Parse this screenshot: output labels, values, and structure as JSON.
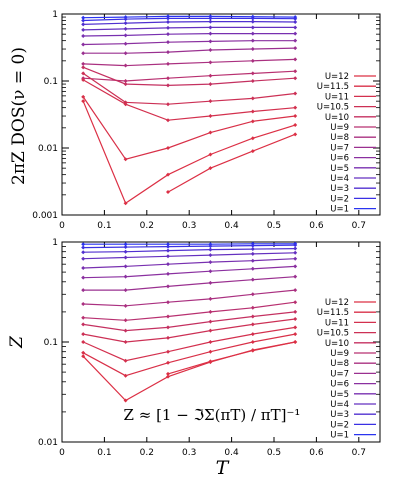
{
  "chart_data": [
    {
      "type": "line",
      "title": "",
      "ylabel": "2πZ DOS(ν = 0)",
      "xlabel": "",
      "yscale": "log",
      "xlim": [
        0,
        0.75
      ],
      "ylim": [
        0.001,
        1
      ],
      "xticks": [
        "0",
        "0.1",
        "0.2",
        "0.3",
        "0.4",
        "0.5",
        "0.6",
        "0.7"
      ],
      "yticks": [
        "0.001",
        "0.01",
        "0.1",
        "1"
      ],
      "legend_position": "right",
      "series": [
        {
          "name": "U=1",
          "color": "#2a34f0",
          "x": [
            0.05,
            0.15,
            0.25,
            0.35,
            0.45,
            0.55
          ],
          "y": [
            0.88,
            0.9,
            0.92,
            0.92,
            0.91,
            0.9
          ]
        },
        {
          "name": "U=2",
          "color": "#3a30e4",
          "x": [
            0.05,
            0.15,
            0.25,
            0.35,
            0.45,
            0.55
          ],
          "y": [
            0.8,
            0.84,
            0.86,
            0.86,
            0.86,
            0.85
          ]
        },
        {
          "name": "U=3",
          "color": "#5030d0",
          "x": [
            0.05,
            0.15,
            0.25,
            0.35,
            0.45,
            0.55
          ],
          "y": [
            0.7,
            0.73,
            0.76,
            0.77,
            0.77,
            0.76
          ]
        },
        {
          "name": "U=4",
          "color": "#6430c0",
          "x": [
            0.05,
            0.15,
            0.25,
            0.35,
            0.45,
            0.55
          ],
          "y": [
            0.58,
            0.6,
            0.62,
            0.63,
            0.63,
            0.63
          ]
        },
        {
          "name": "U=5",
          "color": "#7830b0",
          "x": [
            0.05,
            0.15,
            0.25,
            0.35,
            0.45,
            0.55
          ],
          "y": [
            0.47,
            0.48,
            0.5,
            0.51,
            0.51,
            0.51
          ]
        },
        {
          "name": "U=6",
          "color": "#8a30a0",
          "x": [
            0.05,
            0.15,
            0.25,
            0.35,
            0.45,
            0.55
          ],
          "y": [
            0.35,
            0.36,
            0.38,
            0.39,
            0.4,
            0.4
          ]
        },
        {
          "name": "U=7",
          "color": "#9a3090",
          "x": [
            0.05,
            0.15,
            0.25,
            0.35,
            0.45,
            0.55
          ],
          "y": [
            0.26,
            0.26,
            0.27,
            0.29,
            0.3,
            0.31
          ]
        },
        {
          "name": "U=8",
          "color": "#aa3080",
          "x": [
            0.05,
            0.15,
            0.25,
            0.35,
            0.45,
            0.55
          ],
          "y": [
            0.18,
            0.17,
            0.18,
            0.19,
            0.2,
            0.21
          ]
        },
        {
          "name": "U=9",
          "color": "#b83070",
          "x": [
            0.05,
            0.15,
            0.25,
            0.35,
            0.45,
            0.55
          ],
          "y": [
            0.11,
            0.1,
            0.11,
            0.12,
            0.13,
            0.14
          ]
        },
        {
          "name": "U=10",
          "color": "#c43060",
          "x": [
            0.05,
            0.15,
            0.25,
            0.35,
            0.45,
            0.55
          ],
          "y": [
            0.16,
            0.09,
            0.086,
            0.09,
            0.1,
            0.11
          ]
        },
        {
          "name": "U=10.5",
          "color": "#cc3055",
          "x": [
            0.05,
            0.15,
            0.25,
            0.35,
            0.45,
            0.55
          ],
          "y": [
            0.13,
            0.048,
            0.045,
            0.05,
            0.055,
            0.065
          ]
        },
        {
          "name": "U=11",
          "color": "#d3304e",
          "x": [
            0.05,
            0.15,
            0.25,
            0.35,
            0.45,
            0.55
          ],
          "y": [
            0.104,
            0.045,
            0.026,
            0.03,
            0.035,
            0.04
          ]
        },
        {
          "name": "U=11.5",
          "color": "#d83048",
          "x": [
            0.05,
            0.15,
            0.25,
            0.35,
            0.45,
            0.55
          ],
          "y": [
            0.058,
            0.0068,
            0.01,
            0.017,
            0.025,
            0.03
          ]
        },
        {
          "name": "U=12",
          "color": "#dc3045",
          "x": [
            0.05,
            0.15,
            0.25,
            0.35,
            0.45,
            0.55
          ],
          "y": [
            0.05,
            0.0015,
            0.004,
            0.008,
            0.014,
            0.022
          ]
        },
        {
          "name": "",
          "color": "#dc3045",
          "x": [
            0.25,
            0.35,
            0.45,
            0.55
          ],
          "y": [
            0.0022,
            0.005,
            0.009,
            0.016
          ]
        }
      ]
    },
    {
      "type": "line",
      "title": "",
      "ylabel": "Z",
      "xlabel": "T",
      "yscale": "log",
      "xlim": [
        0,
        0.75
      ],
      "ylim": [
        0.01,
        1
      ],
      "xticks": [
        "0",
        "0.1",
        "0.2",
        "0.3",
        "0.4",
        "0.5",
        "0.6",
        "0.7"
      ],
      "yticks": [
        "0.01",
        "0.1",
        "1"
      ],
      "legend_position": "right",
      "annotation": "Z ≈ [1 − ℑΣ(πT) / πT]⁻¹",
      "series": [
        {
          "name": "U=1",
          "color": "#2a34f0",
          "x": [
            0.05,
            0.15,
            0.25,
            0.35,
            0.45,
            0.55
          ],
          "y": [
            0.95,
            0.95,
            0.95,
            0.95,
            0.96,
            0.96
          ]
        },
        {
          "name": "U=2",
          "color": "#3a30e4",
          "x": [
            0.05,
            0.15,
            0.25,
            0.35,
            0.45,
            0.55
          ],
          "y": [
            0.88,
            0.89,
            0.9,
            0.91,
            0.92,
            0.93
          ]
        },
        {
          "name": "U=3",
          "color": "#5030d0",
          "x": [
            0.05,
            0.15,
            0.25,
            0.35,
            0.45,
            0.55
          ],
          "y": [
            0.79,
            0.8,
            0.82,
            0.84,
            0.85,
            0.86
          ]
        },
        {
          "name": "U=4",
          "color": "#6430c0",
          "x": [
            0.05,
            0.15,
            0.25,
            0.35,
            0.45,
            0.55
          ],
          "y": [
            0.68,
            0.7,
            0.72,
            0.74,
            0.76,
            0.78
          ]
        },
        {
          "name": "U=5",
          "color": "#7830b0",
          "x": [
            0.05,
            0.15,
            0.25,
            0.35,
            0.45,
            0.55
          ],
          "y": [
            0.55,
            0.57,
            0.6,
            0.63,
            0.65,
            0.68
          ]
        },
        {
          "name": "U=6",
          "color": "#8a30a0",
          "x": [
            0.05,
            0.15,
            0.25,
            0.35,
            0.45,
            0.55
          ],
          "y": [
            0.44,
            0.45,
            0.48,
            0.51,
            0.54,
            0.57
          ]
        },
        {
          "name": "U=7",
          "color": "#9a3090",
          "x": [
            0.05,
            0.15,
            0.25,
            0.35,
            0.45,
            0.55
          ],
          "y": [
            0.33,
            0.33,
            0.36,
            0.39,
            0.42,
            0.45
          ]
        },
        {
          "name": "U=8",
          "color": "#aa3080",
          "x": [
            0.05,
            0.15,
            0.25,
            0.35,
            0.45,
            0.55
          ],
          "y": [
            0.24,
            0.23,
            0.25,
            0.27,
            0.3,
            0.33
          ]
        },
        {
          "name": "U=9",
          "color": "#b83070",
          "x": [
            0.05,
            0.15,
            0.25,
            0.35,
            0.45,
            0.55
          ],
          "y": [
            0.175,
            0.165,
            0.18,
            0.2,
            0.22,
            0.25
          ]
        },
        {
          "name": "U=10",
          "color": "#c43060",
          "x": [
            0.05,
            0.15,
            0.25,
            0.35,
            0.45,
            0.55
          ],
          "y": [
            0.15,
            0.13,
            0.14,
            0.16,
            0.18,
            0.2
          ]
        },
        {
          "name": "U=10.5",
          "color": "#cc3055",
          "x": [
            0.05,
            0.15,
            0.25,
            0.35,
            0.45,
            0.55
          ],
          "y": [
            0.12,
            0.1,
            0.11,
            0.13,
            0.15,
            0.17
          ]
        },
        {
          "name": "U=11",
          "color": "#d3304e",
          "x": [
            0.05,
            0.15,
            0.25,
            0.35,
            0.45,
            0.55
          ],
          "y": [
            0.1,
            0.065,
            0.08,
            0.1,
            0.12,
            0.14
          ]
        },
        {
          "name": "U=11.5",
          "color": "#d83048",
          "x": [
            0.05,
            0.15,
            0.25,
            0.35,
            0.45,
            0.55
          ],
          "y": [
            0.078,
            0.046,
            0.062,
            0.08,
            0.1,
            0.12
          ]
        },
        {
          "name": "U=12",
          "color": "#dc3045",
          "x": [
            0.05,
            0.15,
            0.25,
            0.35,
            0.45,
            0.55
          ],
          "y": [
            0.072,
            0.026,
            0.045,
            0.063,
            0.083,
            0.1
          ]
        },
        {
          "name": "",
          "color": "#dc3045",
          "x": [
            0.25,
            0.35,
            0.45,
            0.55
          ],
          "y": [
            0.048,
            0.064,
            0.082,
            0.1
          ]
        }
      ]
    }
  ]
}
